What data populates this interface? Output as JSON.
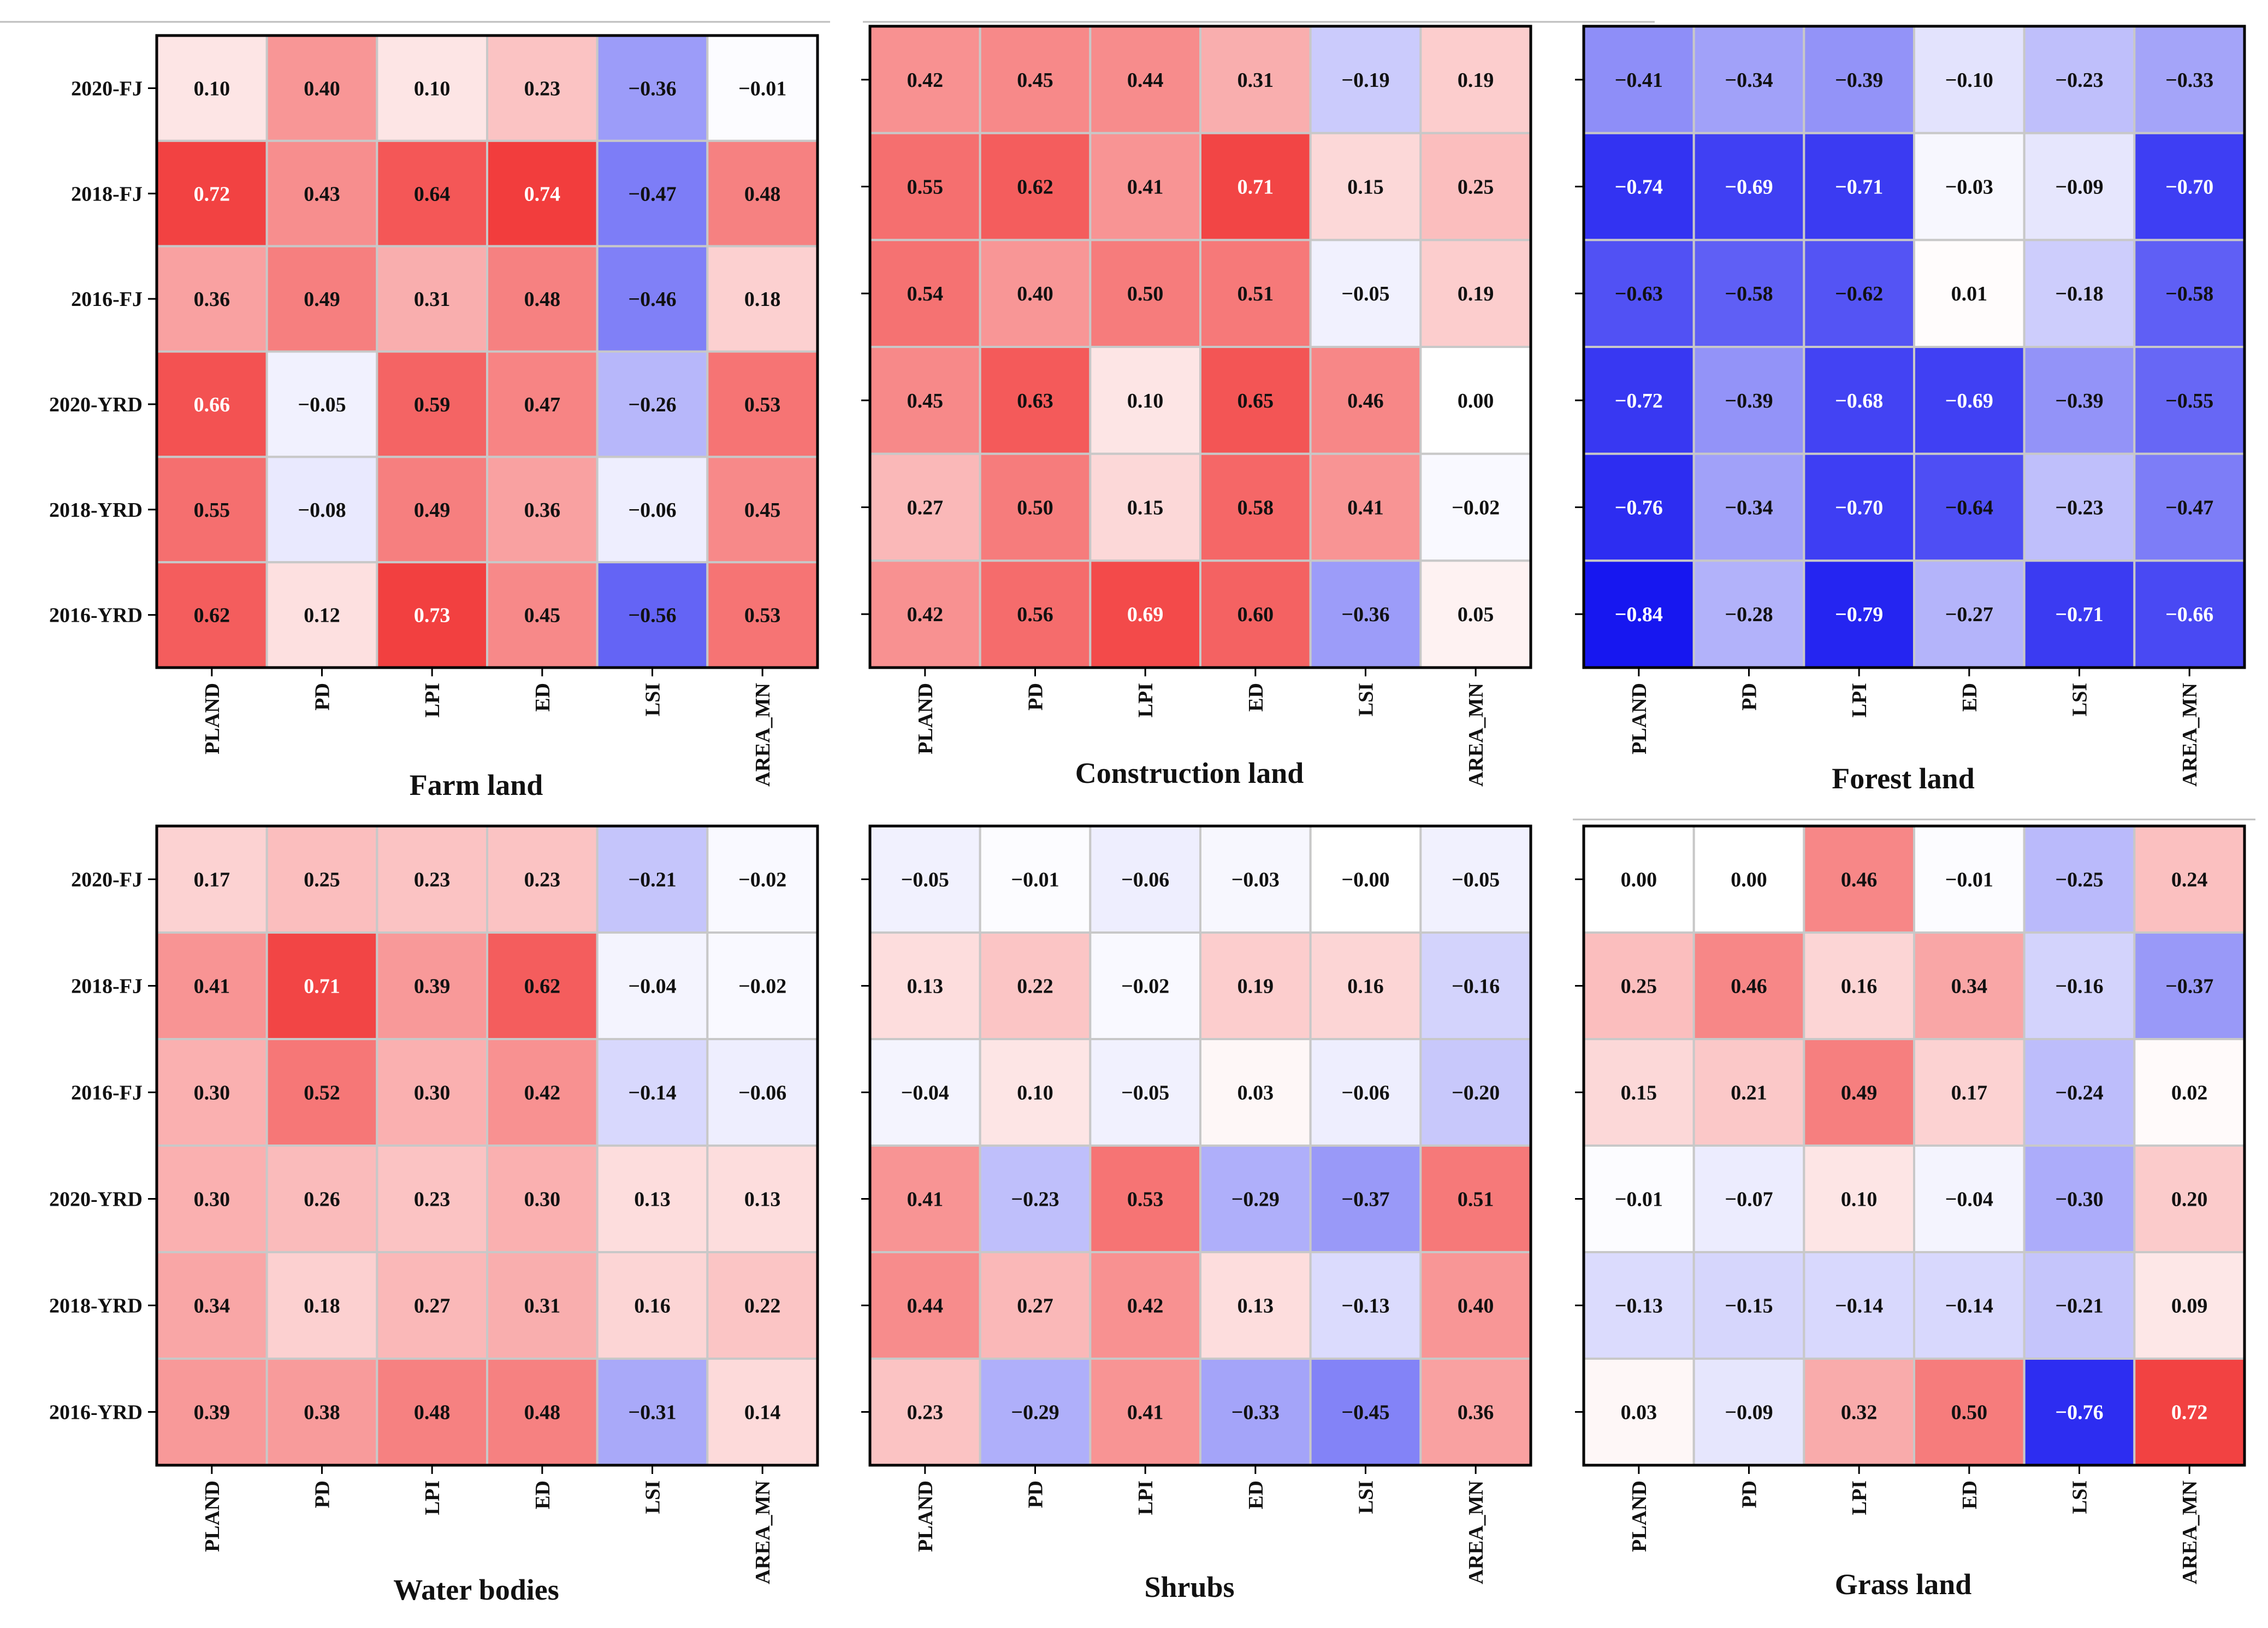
{
  "chart_data": [
    {
      "type": "heatmap",
      "title": "Farm land",
      "rows": [
        "2020-FJ",
        "2018-FJ",
        "2016-FJ",
        "2020-YRD",
        "2018-YRD",
        "2016-YRD"
      ],
      "cols": [
        "PLAND",
        "PD",
        "LPI",
        "ED",
        "LSI",
        "AREA_MN"
      ],
      "labels": [
        [
          "0.10",
          "0.40",
          "0.10",
          "0.23",
          "−0.36",
          "−0.01"
        ],
        [
          "0.72",
          "0.43",
          "0.64",
          "0.74",
          "−0.47",
          "0.48"
        ],
        [
          "0.36",
          "0.49",
          "0.31",
          "0.48",
          "−0.46",
          "0.18"
        ],
        [
          "0.66",
          "−0.05",
          "0.59",
          "0.47",
          "−0.26",
          "0.53"
        ],
        [
          "0.55",
          "−0.08",
          "0.49",
          "0.36",
          "−0.06",
          "0.45"
        ],
        [
          "0.62",
          "0.12",
          "0.73",
          "0.45",
          "−0.56",
          "0.53"
        ]
      ],
      "values": [
        [
          0.1,
          0.4,
          0.1,
          0.23,
          -0.36,
          -0.01
        ],
        [
          0.72,
          0.43,
          0.64,
          0.74,
          -0.47,
          0.48
        ],
        [
          0.36,
          0.49,
          0.31,
          0.48,
          -0.46,
          0.18
        ],
        [
          0.66,
          -0.05,
          0.59,
          0.47,
          -0.26,
          0.53
        ],
        [
          0.55,
          -0.08,
          0.49,
          0.36,
          -0.06,
          0.45
        ],
        [
          0.62,
          0.12,
          0.73,
          0.45,
          -0.56,
          0.53
        ]
      ]
    },
    {
      "type": "heatmap",
      "title": "Construction land",
      "rows": [
        "2020-FJ",
        "2018-FJ",
        "2016-FJ",
        "2020-YRD",
        "2018-YRD",
        "2016-YRD"
      ],
      "cols": [
        "PLAND",
        "PD",
        "LPI",
        "ED",
        "LSI",
        "AREA_MN"
      ],
      "labels": [
        [
          "0.42",
          "0.45",
          "0.44",
          "0.31",
          "−0.19",
          "0.19"
        ],
        [
          "0.55",
          "0.62",
          "0.41",
          "0.71",
          "0.15",
          "0.25"
        ],
        [
          "0.54",
          "0.40",
          "0.50",
          "0.51",
          "−0.05",
          "0.19"
        ],
        [
          "0.45",
          "0.63",
          "0.10",
          "0.65",
          "0.46",
          "0.00"
        ],
        [
          "0.27",
          "0.50",
          "0.15",
          "0.58",
          "0.41",
          "−0.02"
        ],
        [
          "0.42",
          "0.56",
          "0.69",
          "0.60",
          "−0.36",
          "0.05"
        ]
      ],
      "values": [
        [
          0.42,
          0.45,
          0.44,
          0.31,
          -0.19,
          0.19
        ],
        [
          0.55,
          0.62,
          0.41,
          0.71,
          0.15,
          0.25
        ],
        [
          0.54,
          0.4,
          0.5,
          0.51,
          -0.05,
          0.19
        ],
        [
          0.45,
          0.63,
          0.1,
          0.65,
          0.46,
          0.0
        ],
        [
          0.27,
          0.5,
          0.15,
          0.58,
          0.41,
          -0.02
        ],
        [
          0.42,
          0.56,
          0.69,
          0.6,
          -0.36,
          0.05
        ]
      ]
    },
    {
      "type": "heatmap",
      "title": "Forest land",
      "rows": [
        "2020-FJ",
        "2018-FJ",
        "2016-FJ",
        "2020-YRD",
        "2018-YRD",
        "2016-YRD"
      ],
      "cols": [
        "PLAND",
        "PD",
        "LPI",
        "ED",
        "LSI",
        "AREA_MN"
      ],
      "labels": [
        [
          "−0.41",
          "−0.34",
          "−0.39",
          "−0.10",
          "−0.23",
          "−0.33"
        ],
        [
          "−0.74",
          "−0.69",
          "−0.71",
          "−0.03",
          "−0.09",
          "−0.70"
        ],
        [
          "−0.63",
          "−0.58",
          "−0.62",
          "0.01",
          "−0.18",
          "−0.58"
        ],
        [
          "−0.72",
          "−0.39",
          "−0.68",
          "−0.69",
          "−0.39",
          "−0.55"
        ],
        [
          "−0.76",
          "−0.34",
          "−0.70",
          "−0.64",
          "−0.23",
          "−0.47"
        ],
        [
          "−0.84",
          "−0.28",
          "−0.79",
          "−0.27",
          "−0.71",
          "−0.66"
        ]
      ],
      "values": [
        [
          -0.41,
          -0.34,
          -0.39,
          -0.1,
          -0.23,
          -0.33
        ],
        [
          -0.74,
          -0.69,
          -0.71,
          -0.03,
          -0.09,
          -0.7
        ],
        [
          -0.63,
          -0.58,
          -0.62,
          0.01,
          -0.18,
          -0.58
        ],
        [
          -0.72,
          -0.39,
          -0.68,
          -0.69,
          -0.39,
          -0.55
        ],
        [
          -0.76,
          -0.34,
          -0.7,
          -0.64,
          -0.23,
          -0.47
        ],
        [
          -0.84,
          -0.28,
          -0.79,
          -0.27,
          -0.71,
          -0.66
        ]
      ]
    },
    {
      "type": "heatmap",
      "title": "Water bodies",
      "rows": [
        "2020-FJ",
        "2018-FJ",
        "2016-FJ",
        "2020-YRD",
        "2018-YRD",
        "2016-YRD"
      ],
      "cols": [
        "PLAND",
        "PD",
        "LPI",
        "ED",
        "LSI",
        "AREA_MN"
      ],
      "labels": [
        [
          "0.17",
          "0.25",
          "0.23",
          "0.23",
          "−0.21",
          "−0.02"
        ],
        [
          "0.41",
          "0.71",
          "0.39",
          "0.62",
          "−0.04",
          "−0.02"
        ],
        [
          "0.30",
          "0.52",
          "0.30",
          "0.42",
          "−0.14",
          "−0.06"
        ],
        [
          "0.30",
          "0.26",
          "0.23",
          "0.30",
          "0.13",
          "0.13"
        ],
        [
          "0.34",
          "0.18",
          "0.27",
          "0.31",
          "0.16",
          "0.22"
        ],
        [
          "0.39",
          "0.38",
          "0.48",
          "0.48",
          "−0.31",
          "0.14"
        ]
      ],
      "values": [
        [
          0.17,
          0.25,
          0.23,
          0.23,
          -0.21,
          -0.02
        ],
        [
          0.41,
          0.71,
          0.39,
          0.62,
          -0.04,
          -0.02
        ],
        [
          0.3,
          0.52,
          0.3,
          0.42,
          -0.14,
          -0.06
        ],
        [
          0.3,
          0.26,
          0.23,
          0.3,
          0.13,
          0.13
        ],
        [
          0.34,
          0.18,
          0.27,
          0.31,
          0.16,
          0.22
        ],
        [
          0.39,
          0.38,
          0.48,
          0.48,
          -0.31,
          0.14
        ]
      ]
    },
    {
      "type": "heatmap",
      "title": "Shrubs",
      "rows": [
        "2020-FJ",
        "2018-FJ",
        "2016-FJ",
        "2020-YRD",
        "2018-YRD",
        "2016-YRD"
      ],
      "cols": [
        "PLAND",
        "PD",
        "LPI",
        "ED",
        "LSI",
        "AREA_MN"
      ],
      "labels": [
        [
          "−0.05",
          "−0.01",
          "−0.06",
          "−0.03",
          "−0.00",
          "−0.05"
        ],
        [
          "0.13",
          "0.22",
          "−0.02",
          "0.19",
          "0.16",
          "−0.16"
        ],
        [
          "−0.04",
          "0.10",
          "−0.05",
          "0.03",
          "−0.06",
          "−0.20"
        ],
        [
          "0.41",
          "−0.23",
          "0.53",
          "−0.29",
          "−0.37",
          "0.51"
        ],
        [
          "0.44",
          "0.27",
          "0.42",
          "0.13",
          "−0.13",
          "0.40"
        ],
        [
          "0.23",
          "−0.29",
          "0.41",
          "−0.33",
          "−0.45",
          "0.36"
        ]
      ],
      "values": [
        [
          -0.05,
          -0.01,
          -0.06,
          -0.03,
          -0.0,
          -0.05
        ],
        [
          0.13,
          0.22,
          -0.02,
          0.19,
          0.16,
          -0.16
        ],
        [
          -0.04,
          0.1,
          -0.05,
          0.03,
          -0.06,
          -0.2
        ],
        [
          0.41,
          -0.23,
          0.53,
          -0.29,
          -0.37,
          0.51
        ],
        [
          0.44,
          0.27,
          0.42,
          0.13,
          -0.13,
          0.4
        ],
        [
          0.23,
          -0.29,
          0.41,
          -0.33,
          -0.45,
          0.36
        ]
      ]
    },
    {
      "type": "heatmap",
      "title": "Grass land",
      "rows": [
        "2020-FJ",
        "2018-FJ",
        "2016-FJ",
        "2020-YRD",
        "2018-YRD",
        "2016-YRD"
      ],
      "cols": [
        "PLAND",
        "PD",
        "LPI",
        "ED",
        "LSI",
        "AREA_MN"
      ],
      "labels": [
        [
          "0.00",
          "0.00",
          "0.46",
          "−0.01",
          "−0.25",
          "0.24"
        ],
        [
          "0.25",
          "0.46",
          "0.16",
          "0.34",
          "−0.16",
          "−0.37"
        ],
        [
          "0.15",
          "0.21",
          "0.49",
          "0.17",
          "−0.24",
          "0.02"
        ],
        [
          "−0.01",
          "−0.07",
          "0.10",
          "−0.04",
          "−0.30",
          "0.20"
        ],
        [
          "−0.13",
          "−0.15",
          "−0.14",
          "−0.14",
          "−0.21",
          "0.09"
        ],
        [
          "0.03",
          "−0.09",
          "0.32",
          "0.50",
          "−0.76",
          "0.72"
        ]
      ],
      "values": [
        [
          0.0,
          0.0,
          0.46,
          -0.01,
          -0.25,
          0.24
        ],
        [
          0.25,
          0.46,
          0.16,
          0.34,
          -0.16,
          -0.37
        ],
        [
          0.15,
          0.21,
          0.49,
          0.17,
          -0.24,
          0.02
        ],
        [
          -0.01,
          -0.07,
          0.1,
          -0.04,
          -0.3,
          0.2
        ],
        [
          -0.13,
          -0.15,
          -0.14,
          -0.14,
          -0.21,
          0.09
        ],
        [
          0.03,
          -0.09,
          0.32,
          0.5,
          -0.76,
          0.72
        ]
      ]
    }
  ],
  "colors": {
    "positive": "#f02323",
    "negative": "#1717f0",
    "neutral": "#ffffff",
    "grid": "#c8c8c8",
    "frame": "#000000"
  }
}
